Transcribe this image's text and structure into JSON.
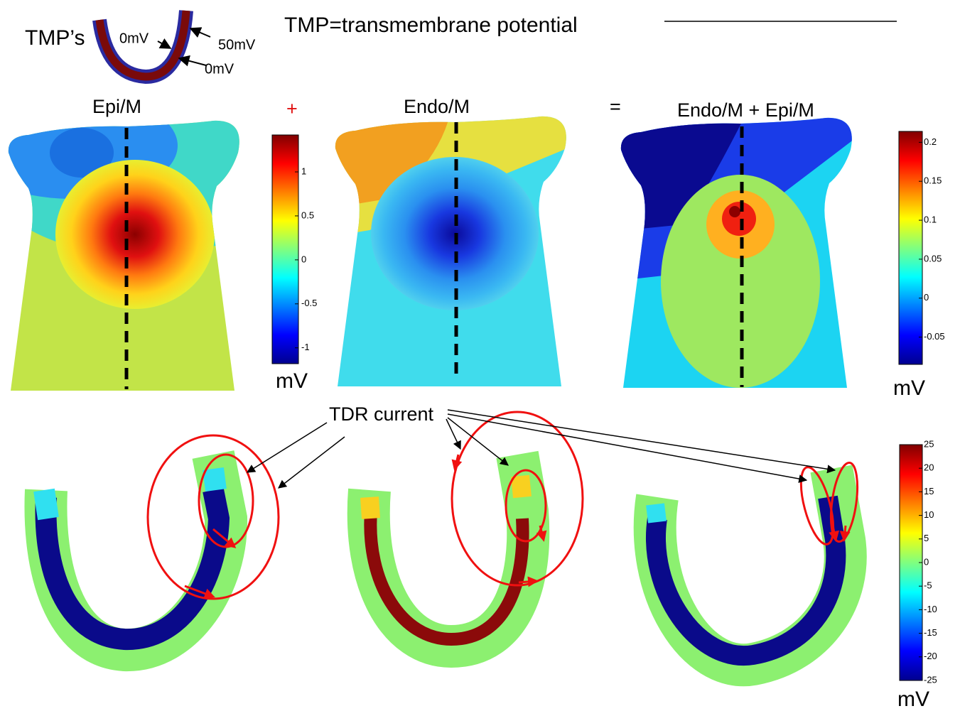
{
  "header": {
    "tmp_label": "TMP’s",
    "inner_label": "0mV",
    "middle_label": "50mV",
    "outer_label": "0mV",
    "definition": "TMP=transmembrane potential"
  },
  "panels": [
    {
      "title": "Epi/M"
    },
    {
      "operator": "+",
      "title": "Endo/M"
    },
    {
      "operator": "=",
      "title": "Endo/M + Epi/M"
    }
  ],
  "colorbars": [
    {
      "unit": "mV",
      "range": [
        -1.18,
        1.42
      ],
      "ticks": [
        1,
        0.5,
        0,
        -0.5,
        -1
      ]
    },
    {
      "unit": "mV",
      "range": [
        -0.085,
        0.214
      ],
      "ticks": [
        0.2,
        0.15,
        0.1,
        0.05,
        0,
        -0.05
      ]
    },
    {
      "unit": "mV",
      "range": [
        -25,
        25
      ],
      "ticks": [
        25,
        20,
        15,
        10,
        5,
        0,
        -5,
        -10,
        -15,
        -20,
        -25
      ]
    }
  ],
  "annotation": "TDR current"
}
